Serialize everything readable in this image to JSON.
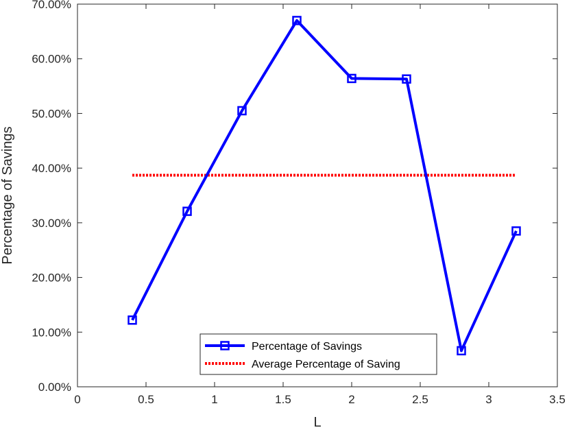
{
  "chart_data": {
    "type": "line",
    "title": "",
    "xlabel": "L",
    "ylabel": "Percentage of Savings",
    "xlim": [
      0,
      3.5
    ],
    "ylim": [
      0,
      70
    ],
    "xticks": [
      0,
      0.5,
      1,
      1.5,
      2,
      2.5,
      3,
      3.5
    ],
    "xtick_labels": [
      "0",
      "0.5",
      "1",
      "1.5",
      "2",
      "2.5",
      "3",
      "3.5"
    ],
    "yticks": [
      0,
      10,
      20,
      30,
      40,
      50,
      60,
      70
    ],
    "ytick_labels": [
      "0.00%",
      "10.00%",
      "20.00%",
      "30.00%",
      "40.00%",
      "50.00%",
      "60.00%",
      "70.00%"
    ],
    "grid": false,
    "legend_position": "bottom-center",
    "series": [
      {
        "name": "Percentage of Savings",
        "style": "solid",
        "marker": "square",
        "color": "#0000ff",
        "x": [
          0.4,
          0.8,
          1.2,
          1.6,
          2.0,
          2.4,
          2.8,
          3.2
        ],
        "y": [
          12.2,
          32.1,
          50.5,
          67.0,
          56.4,
          56.3,
          6.6,
          28.5
        ]
      },
      {
        "name": "Average Percentage of Saving",
        "style": "dotted",
        "marker": "none",
        "color": "#ff0000",
        "x": [
          0.4,
          3.2
        ],
        "y": [
          38.7,
          38.7
        ]
      }
    ]
  }
}
